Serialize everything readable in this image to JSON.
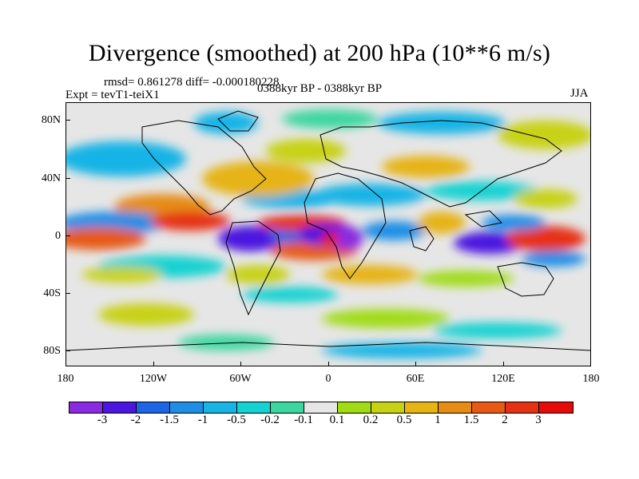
{
  "title": "Divergence (smoothed) at 200 hPa (10**6 m/s)",
  "stats": "rmsd= 0.861278  diff= -0.000180228",
  "experiment": "Expt = tevT1-teiX1",
  "period": "0388kyr BP - 0388kyr BP",
  "season": "JJA",
  "lat_labels": [
    "80N",
    "40N",
    "0",
    "40S",
    "80S"
  ],
  "lon_labels": [
    "180",
    "120W",
    "60W",
    "0",
    "60E",
    "120E",
    "180"
  ],
  "colorbar": {
    "labels": [
      "-3",
      "-2",
      "-1.5",
      "-1",
      "-0.5",
      "-0.2",
      "-0.1",
      "0.1",
      "0.2",
      "0.5",
      "1",
      "1.5",
      "2",
      "3"
    ],
    "colors": [
      "#8a2be2",
      "#4b16e0",
      "#1e64e6",
      "#1e8ee6",
      "#19b4e6",
      "#16d2d2",
      "#3cd7a0",
      "#e6e6e6",
      "#a0dc14",
      "#c8d214",
      "#e6b414",
      "#e68c14",
      "#e65a14",
      "#e63214",
      "#e60a0a"
    ]
  }
}
